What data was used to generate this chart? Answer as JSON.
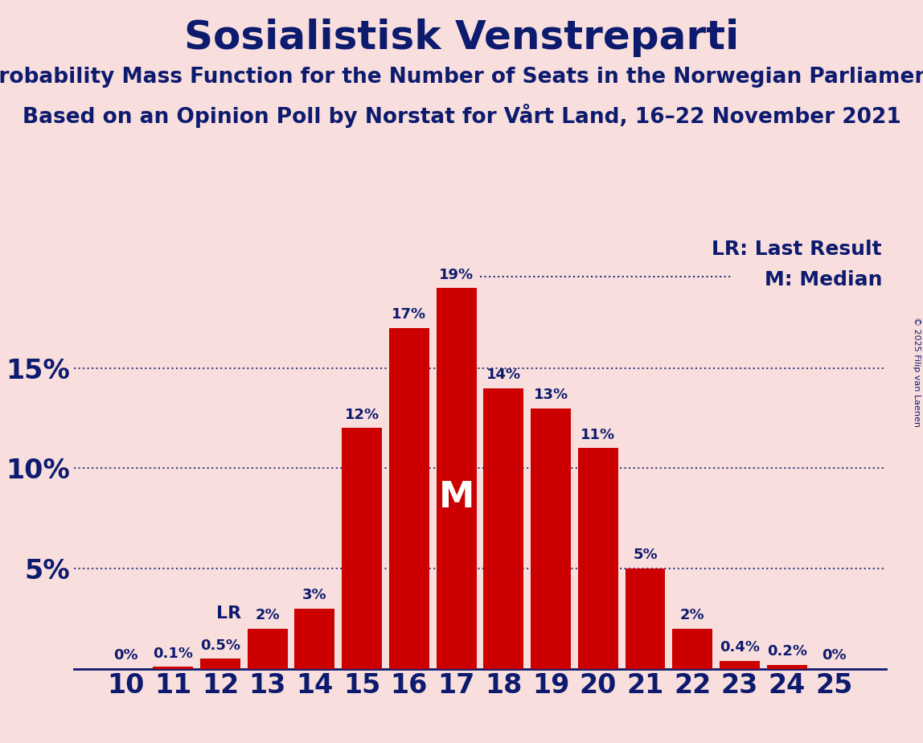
{
  "title": "Sosialistisk Venstreparti",
  "subtitle1": "Probability Mass Function for the Number of Seats in the Norwegian Parliament",
  "subtitle2": "Based on an Opinion Poll by Norstat for Vårt Land, 16–22 November 2021",
  "copyright": "© 2025 Filip van Laenen",
  "seats": [
    10,
    11,
    12,
    13,
    14,
    15,
    16,
    17,
    18,
    19,
    20,
    21,
    22,
    23,
    24,
    25
  ],
  "probabilities": [
    0.0,
    0.1,
    0.5,
    2.0,
    3.0,
    12.0,
    17.0,
    19.0,
    14.0,
    13.0,
    11.0,
    5.0,
    2.0,
    0.4,
    0.2,
    0.0
  ],
  "bar_color": "#cc0000",
  "background_color": "#f9dede",
  "text_color": "#0d1b6e",
  "grid_color": "#0d1b6e",
  "last_result_seat": 13,
  "median_seat": 17,
  "ylim": [
    0,
    21.5
  ],
  "yticks": [
    5,
    10,
    15
  ],
  "ytick_labels": [
    "5%",
    "10%",
    "15%"
  ],
  "bar_labels": [
    "0%",
    "0.1%",
    "0.5%",
    "2%",
    "3%",
    "12%",
    "17%",
    "19%",
    "14%",
    "13%",
    "11%",
    "5%",
    "2%",
    "0.4%",
    "0.2%",
    "0%"
  ]
}
